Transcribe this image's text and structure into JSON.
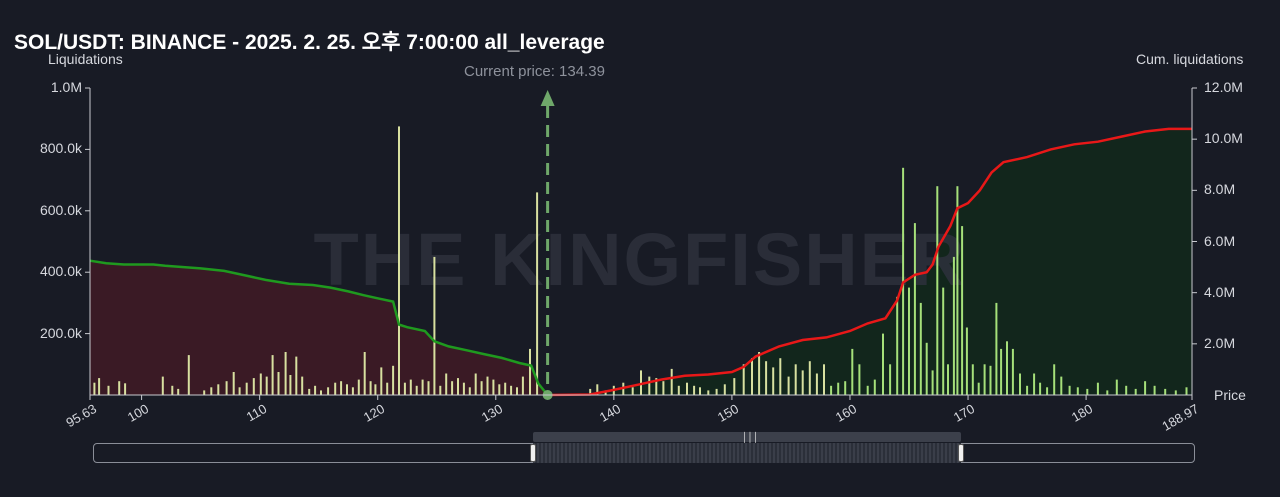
{
  "title": "SOL/USDT: BINANCE - 2025. 2. 25. 오후 7:00:00 all_leverage",
  "left_axis_name": "Liquidations",
  "right_axis_name": "Cum. liquidations",
  "x_axis_name": "Price",
  "current_price_label": "Current price: 134.39",
  "watermark": "THE KINGFISHER",
  "colors": {
    "background": "#181b25",
    "bars": "#d8e0a0",
    "bars_right": "#a6e07a",
    "cum_left": "#1f9a1f",
    "cum_right": "#e81818",
    "fill_left": "#3a1a25",
    "fill_right": "#12261c",
    "current_price_line": "#6fa86a"
  },
  "chart_data": {
    "type": "bar",
    "title": "SOL/USDT: BINANCE - 2025. 2. 25. 오후 7:00:00 all_leverage",
    "xlabel": "Price",
    "ylabel": "Liquidations",
    "y2label": "Cum. liquidations",
    "xlim": [
      95.63,
      188.97
    ],
    "ylim": [
      0,
      1000000
    ],
    "y2lim": [
      0,
      12000000
    ],
    "current_price": 134.39,
    "x_ticks": [
      "95.63",
      "100",
      "110",
      "120",
      "130",
      "140",
      "150",
      "160",
      "170",
      "180",
      "188.97"
    ],
    "x_tick_values": [
      95.63,
      100,
      110,
      120,
      130,
      140,
      150,
      160,
      170,
      180,
      188.97
    ],
    "y_ticks": [
      "1.0M",
      "800.0k",
      "600.0k",
      "400.0k",
      "200.0k"
    ],
    "y_tick_values": [
      1000000,
      800000,
      600000,
      400000,
      200000
    ],
    "y2_ticks": [
      "12.0M",
      "10.0M",
      "8.0M",
      "6.0M",
      "4.0M",
      "2.0M"
    ],
    "y2_tick_values": [
      12000000,
      10000000,
      8000000,
      6000000,
      4000000,
      2000000
    ],
    "bars": [
      [
        96.0,
        40000
      ],
      [
        96.4,
        55000
      ],
      [
        97.2,
        30000
      ],
      [
        98.1,
        45000
      ],
      [
        98.6,
        38000
      ],
      [
        101.8,
        60000
      ],
      [
        102.6,
        30000
      ],
      [
        103.1,
        20000
      ],
      [
        104.0,
        130000
      ],
      [
        105.3,
        15000
      ],
      [
        105.9,
        25000
      ],
      [
        106.5,
        35000
      ],
      [
        107.2,
        45000
      ],
      [
        107.8,
        75000
      ],
      [
        108.3,
        25000
      ],
      [
        108.9,
        40000
      ],
      [
        109.5,
        55000
      ],
      [
        110.1,
        70000
      ],
      [
        110.6,
        60000
      ],
      [
        111.1,
        130000
      ],
      [
        111.6,
        75000
      ],
      [
        112.2,
        140000
      ],
      [
        112.6,
        65000
      ],
      [
        113.1,
        125000
      ],
      [
        113.6,
        60000
      ],
      [
        114.2,
        20000
      ],
      [
        114.7,
        30000
      ],
      [
        115.2,
        15000
      ],
      [
        115.8,
        25000
      ],
      [
        116.4,
        40000
      ],
      [
        116.9,
        45000
      ],
      [
        117.4,
        35000
      ],
      [
        117.9,
        25000
      ],
      [
        118.4,
        50000
      ],
      [
        118.9,
        140000
      ],
      [
        119.4,
        45000
      ],
      [
        119.8,
        35000
      ],
      [
        120.3,
        90000
      ],
      [
        120.8,
        40000
      ],
      [
        121.3,
        95000
      ],
      [
        121.8,
        875000
      ],
      [
        122.3,
        40000
      ],
      [
        122.8,
        50000
      ],
      [
        123.3,
        30000
      ],
      [
        123.8,
        50000
      ],
      [
        124.3,
        45000
      ],
      [
        124.8,
        450000
      ],
      [
        125.3,
        30000
      ],
      [
        125.8,
        70000
      ],
      [
        126.3,
        45000
      ],
      [
        126.8,
        55000
      ],
      [
        127.3,
        40000
      ],
      [
        127.8,
        25000
      ],
      [
        128.3,
        70000
      ],
      [
        128.8,
        45000
      ],
      [
        129.3,
        60000
      ],
      [
        129.8,
        50000
      ],
      [
        130.3,
        35000
      ],
      [
        130.8,
        40000
      ],
      [
        131.3,
        30000
      ],
      [
        131.8,
        25000
      ],
      [
        132.3,
        60000
      ],
      [
        132.9,
        150000
      ],
      [
        133.5,
        660000
      ],
      [
        138.0,
        20000
      ],
      [
        138.6,
        35000
      ],
      [
        139.3,
        15000
      ],
      [
        140.0,
        30000
      ],
      [
        140.8,
        40000
      ],
      [
        141.6,
        25000
      ],
      [
        142.3,
        80000
      ],
      [
        143.0,
        60000
      ],
      [
        143.6,
        55000
      ],
      [
        144.2,
        45000
      ],
      [
        144.9,
        85000
      ],
      [
        145.5,
        30000
      ],
      [
        146.2,
        40000
      ],
      [
        146.8,
        30000
      ],
      [
        147.3,
        25000
      ],
      [
        148.0,
        15000
      ],
      [
        148.7,
        20000
      ],
      [
        149.4,
        35000
      ],
      [
        150.2,
        55000
      ],
      [
        151.0,
        100000
      ],
      [
        151.7,
        120000
      ],
      [
        152.3,
        140000
      ],
      [
        152.9,
        110000
      ],
      [
        153.5,
        90000
      ],
      [
        154.1,
        120000
      ],
      [
        154.8,
        60000
      ],
      [
        155.4,
        100000
      ],
      [
        156.0,
        80000
      ],
      [
        156.6,
        110000
      ],
      [
        157.2,
        70000
      ],
      [
        157.8,
        100000
      ],
      [
        158.4,
        30000
      ],
      [
        159.0,
        40000
      ],
      [
        159.6,
        45000
      ],
      [
        160.2,
        150000
      ],
      [
        160.8,
        100000
      ],
      [
        161.5,
        30000
      ],
      [
        162.1,
        50000
      ],
      [
        162.8,
        200000
      ],
      [
        163.4,
        100000
      ],
      [
        164.0,
        320000
      ],
      [
        164.5,
        740000
      ],
      [
        165.0,
        350000
      ],
      [
        165.5,
        560000
      ],
      [
        166.0,
        300000
      ],
      [
        166.5,
        170000
      ],
      [
        167.0,
        80000
      ],
      [
        167.4,
        680000
      ],
      [
        167.9,
        350000
      ],
      [
        168.3,
        100000
      ],
      [
        168.8,
        450000
      ],
      [
        169.1,
        680000
      ],
      [
        169.5,
        550000
      ],
      [
        169.9,
        220000
      ],
      [
        170.4,
        100000
      ],
      [
        170.9,
        40000
      ],
      [
        171.4,
        100000
      ],
      [
        171.9,
        95000
      ],
      [
        172.4,
        300000
      ],
      [
        172.8,
        150000
      ],
      [
        173.3,
        175000
      ],
      [
        173.8,
        150000
      ],
      [
        174.4,
        70000
      ],
      [
        175.0,
        30000
      ],
      [
        175.6,
        70000
      ],
      [
        176.1,
        40000
      ],
      [
        176.7,
        25000
      ],
      [
        177.3,
        100000
      ],
      [
        177.9,
        60000
      ],
      [
        178.6,
        30000
      ],
      [
        179.3,
        25000
      ],
      [
        180.1,
        20000
      ],
      [
        181.0,
        40000
      ],
      [
        181.8,
        15000
      ],
      [
        182.6,
        50000
      ],
      [
        183.4,
        30000
      ],
      [
        184.2,
        20000
      ],
      [
        185.0,
        45000
      ],
      [
        185.8,
        30000
      ],
      [
        186.7,
        20000
      ],
      [
        187.6,
        15000
      ],
      [
        188.5,
        25000
      ]
    ],
    "cum_left": [
      [
        95.63,
        5250000
      ],
      [
        97.0,
        5150000
      ],
      [
        98.5,
        5100000
      ],
      [
        101.0,
        5100000
      ],
      [
        102.0,
        5050000
      ],
      [
        105.0,
        4950000
      ],
      [
        107.0,
        4850000
      ],
      [
        109.0,
        4650000
      ],
      [
        110.5,
        4500000
      ],
      [
        112.5,
        4350000
      ],
      [
        114.5,
        4300000
      ],
      [
        116.0,
        4200000
      ],
      [
        117.5,
        4050000
      ],
      [
        118.8,
        3900000
      ],
      [
        119.8,
        3800000
      ],
      [
        121.3,
        3650000
      ],
      [
        121.8,
        2750000
      ],
      [
        122.5,
        2650000
      ],
      [
        124.0,
        2500000
      ],
      [
        124.8,
        2100000
      ],
      [
        126.0,
        1900000
      ],
      [
        127.5,
        1750000
      ],
      [
        129.0,
        1600000
      ],
      [
        130.5,
        1450000
      ],
      [
        132.0,
        1250000
      ],
      [
        133.0,
        1150000
      ],
      [
        133.6,
        450000
      ],
      [
        134.39,
        0
      ]
    ],
    "cum_right": [
      [
        134.39,
        0
      ],
      [
        138.0,
        20000
      ],
      [
        140.0,
        200000
      ],
      [
        142.0,
        400000
      ],
      [
        144.0,
        600000
      ],
      [
        146.0,
        750000
      ],
      [
        148.0,
        800000
      ],
      [
        150.0,
        900000
      ],
      [
        151.0,
        1100000
      ],
      [
        152.0,
        1500000
      ],
      [
        154.0,
        1900000
      ],
      [
        156.0,
        2150000
      ],
      [
        158.0,
        2250000
      ],
      [
        160.0,
        2500000
      ],
      [
        161.5,
        2800000
      ],
      [
        163.0,
        3000000
      ],
      [
        164.0,
        3700000
      ],
      [
        164.5,
        4400000
      ],
      [
        165.5,
        4700000
      ],
      [
        166.5,
        4800000
      ],
      [
        167.0,
        5100000
      ],
      [
        167.5,
        5800000
      ],
      [
        168.5,
        6600000
      ],
      [
        169.1,
        7300000
      ],
      [
        170.0,
        7500000
      ],
      [
        171.0,
        8000000
      ],
      [
        172.0,
        8700000
      ],
      [
        173.0,
        9100000
      ],
      [
        175.0,
        9300000
      ],
      [
        177.0,
        9600000
      ],
      [
        179.0,
        9800000
      ],
      [
        181.0,
        9900000
      ],
      [
        183.0,
        10100000
      ],
      [
        185.0,
        10300000
      ],
      [
        187.0,
        10400000
      ],
      [
        188.97,
        10400000
      ]
    ]
  }
}
